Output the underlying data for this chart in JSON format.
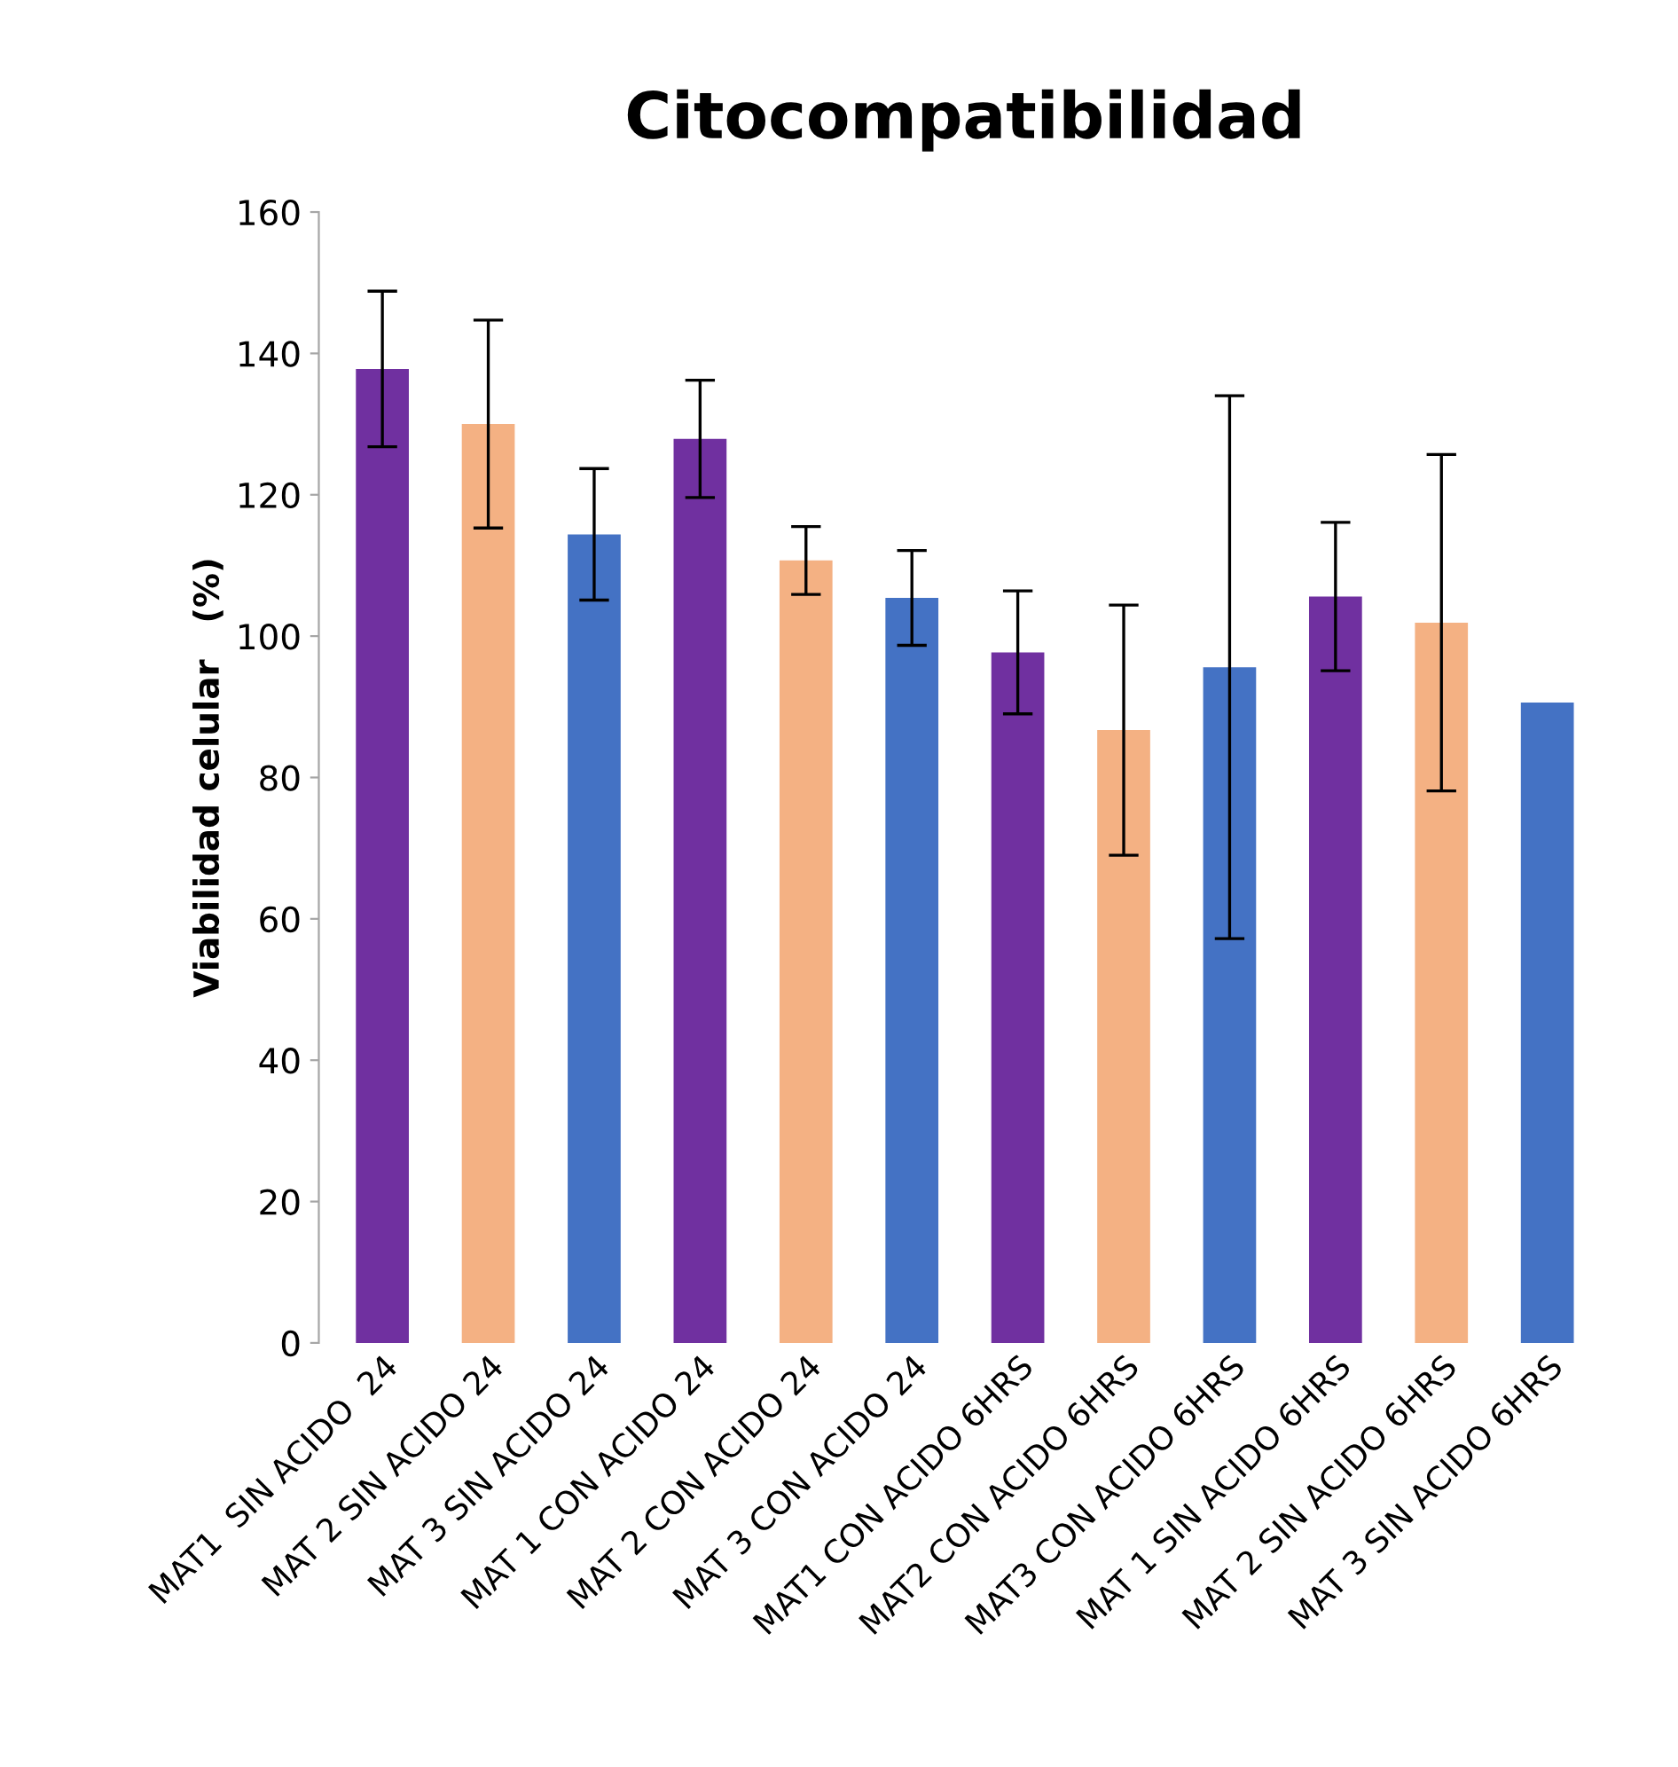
{
  "chart_data": {
    "type": "bar",
    "title": "Citocompatibilidad",
    "ylabel": "Viabilidad celular   (%)",
    "categories": [
      "MAT1  SIN ACIDO  24",
      "MAT 2 SIN ACIDO 24",
      "MAT 3 SIN ACIDO 24",
      "MAT 1 CON ACIDO 24",
      "MAT 2 CON ACIDO 24",
      "MAT 3 CON ACIDO 24",
      "MAT1 CON ACIDO 6HRS",
      "MAT2 CON ACIDO 6HRS",
      "MAT3 CON ACIDO 6HRS",
      "MAT 1 SIN ACIDO 6HRS",
      "MAT 2 SIN ACIDO 6HRS",
      "MAT 3 SIN ACIDO 6HRS"
    ],
    "values": [
      137.8,
      130,
      114.4,
      127.9,
      110.7,
      105.4,
      97.7,
      86.7,
      95.6,
      105.6,
      101.9,
      90.6
    ],
    "errors": [
      11,
      14.7,
      9.3,
      8.3,
      4.8,
      6.7,
      8.7,
      17.7,
      38.4,
      10.5,
      23.8,
      null
    ],
    "colors": [
      "#7030a0",
      "#f4b183",
      "#4472c4",
      "#7030a0",
      "#f4b183",
      "#4472c4",
      "#7030a0",
      "#f4b183",
      "#4472c4",
      "#7030a0",
      "#f4b183",
      "#4472c4"
    ],
    "ylim": [
      0,
      160
    ],
    "yticks": [
      0,
      20,
      40,
      60,
      80,
      100,
      120,
      140,
      160
    ],
    "grid": false,
    "legend": false
  }
}
